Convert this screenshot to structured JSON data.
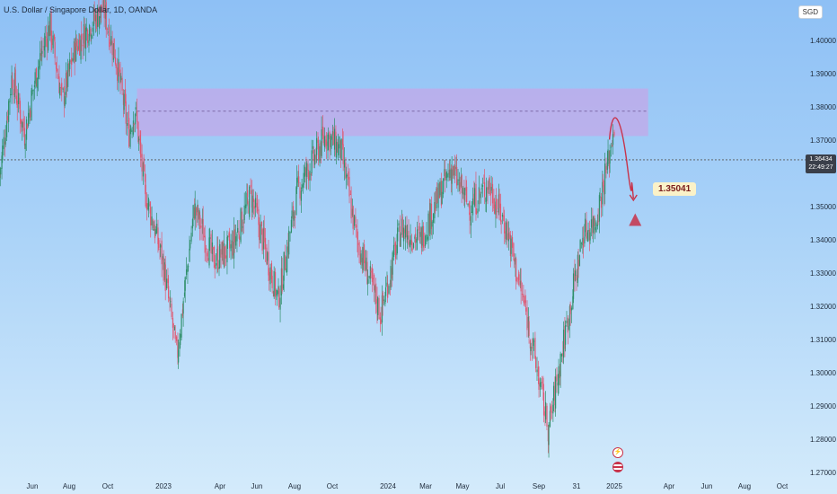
{
  "header": {
    "symbol_line": "U.S. Dollar / Singapore Dollar, 1D, OANDA",
    "currency_button": "SGD"
  },
  "current_price": {
    "value": "1.36434",
    "countdown": "22:49:27"
  },
  "projection_label": "1.35041",
  "y_axis": {
    "ticks": [
      "1.40000",
      "1.39000",
      "1.38000",
      "1.37000",
      "1.35000",
      "1.34000",
      "1.33000",
      "1.32000",
      "1.31000",
      "1.30000",
      "1.29000",
      "1.28000",
      "1.27000"
    ]
  },
  "x_axis": {
    "ticks": [
      "Jun",
      "Aug",
      "Oct",
      "2023",
      "Apr",
      "Jun",
      "Aug",
      "Oct",
      "2024",
      "Mar",
      "May",
      "Jul",
      "Sep",
      "31",
      "2025",
      "Apr",
      "Jun",
      "Aug",
      "Oct"
    ]
  },
  "colors": {
    "up": "#2f8f6a",
    "down": "#e0566f",
    "zone_fill": "#c3a8e8",
    "projection": "#c8334a"
  },
  "chart_data": {
    "type": "candlestick",
    "ylim": [
      1.27,
      1.407
    ],
    "resistance_zone": {
      "low": 1.3715,
      "high": 1.3858,
      "mid": 1.379
    },
    "current_price": 1.36434,
    "projection_target": 1.35041,
    "close_path": [
      {
        "x": "2022-04-20",
        "y": 1.36
      },
      {
        "x": "2022-05-10",
        "y": 1.39
      },
      {
        "x": "2022-05-30",
        "y": 1.372
      },
      {
        "x": "2022-06-20",
        "y": 1.392
      },
      {
        "x": "2022-07-10",
        "y": 1.405
      },
      {
        "x": "2022-07-30",
        "y": 1.382
      },
      {
        "x": "2022-08-20",
        "y": 1.398
      },
      {
        "x": "2022-09-10",
        "y": 1.404
      },
      {
        "x": "2022-10-05",
        "y": 1.41
      },
      {
        "x": "2022-10-25",
        "y": 1.395
      },
      {
        "x": "2022-11-15",
        "y": 1.372
      },
      {
        "x": "2022-11-25",
        "y": 1.38
      },
      {
        "x": "2022-12-10",
        "y": 1.356
      },
      {
        "x": "2023-01-10",
        "y": 1.333
      },
      {
        "x": "2023-02-01",
        "y": 1.305
      },
      {
        "x": "2023-03-01",
        "y": 1.35
      },
      {
        "x": "2023-04-01",
        "y": 1.334
      },
      {
        "x": "2023-05-01",
        "y": 1.338
      },
      {
        "x": "2023-06-01",
        "y": 1.354
      },
      {
        "x": "2023-07-15",
        "y": 1.322
      },
      {
        "x": "2023-08-15",
        "y": 1.355
      },
      {
        "x": "2023-10-01",
        "y": 1.372
      },
      {
        "x": "2023-10-25",
        "y": 1.367
      },
      {
        "x": "2023-11-20",
        "y": 1.34
      },
      {
        "x": "2023-12-28",
        "y": 1.318
      },
      {
        "x": "2024-01-30",
        "y": 1.344
      },
      {
        "x": "2024-03-01",
        "y": 1.34
      },
      {
        "x": "2024-04-20",
        "y": 1.362
      },
      {
        "x": "2024-05-20",
        "y": 1.35
      },
      {
        "x": "2024-06-20",
        "y": 1.357
      },
      {
        "x": "2024-07-20",
        "y": 1.343
      },
      {
        "x": "2024-08-20",
        "y": 1.318
      },
      {
        "x": "2024-09-25",
        "y": 1.283
      },
      {
        "x": "2024-10-20",
        "y": 1.31
      },
      {
        "x": "2024-11-20",
        "y": 1.342
      },
      {
        "x": "2024-12-10",
        "y": 1.346
      },
      {
        "x": "2025-01-02",
        "y": 1.366
      },
      {
        "x": "2025-01-10",
        "y": 1.376
      }
    ],
    "projection_path": [
      {
        "x": "2025-01-10",
        "y": 1.378
      },
      {
        "x": "2025-01-28",
        "y": 1.365
      },
      {
        "x": "2025-02-12",
        "y": 1.35
      }
    ],
    "event_markers": [
      {
        "x": "2025-01-04",
        "icon": "lightning-icon"
      },
      {
        "x": "2025-01-04",
        "icon": "us-flag-icon"
      }
    ]
  }
}
